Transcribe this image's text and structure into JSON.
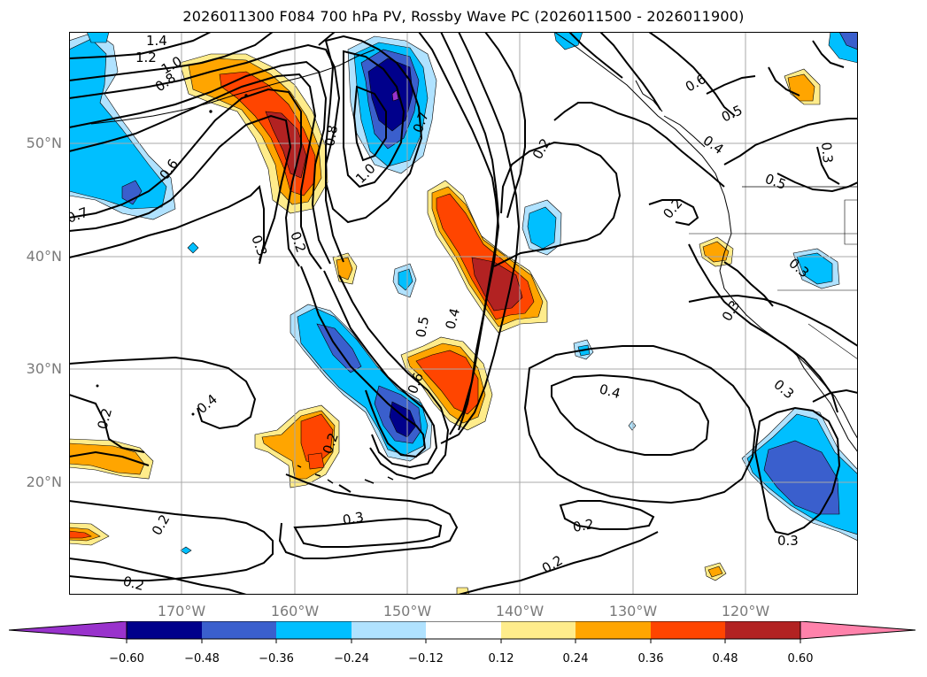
{
  "title": "2026011300 F084 700 hPa PV, Rossby Wave PC (2026011500 - 2026011900)",
  "lat_labels": [
    "50°N",
    "40°N",
    "30°N",
    "20°N"
  ],
  "lon_labels": [
    "170°W",
    "160°W",
    "150°W",
    "140°W",
    "130°W",
    "120°W"
  ],
  "contour_labels": [
    "1.4",
    "1.2",
    "1.0",
    "0.8",
    "0.6",
    "0.7",
    "0.3",
    "0.8",
    "1.0",
    "0.7",
    "0.2",
    "0.6",
    "0.5",
    "0.4",
    "0.5",
    "0.3",
    "0.2",
    "0.3",
    "0.3",
    "0.3",
    "0.5",
    "0.4",
    "0.6",
    "0.2",
    "0.4",
    "0.2",
    "0.2",
    "0.4",
    "0.3",
    "0.2",
    "0.2",
    "0.3",
    "0.2",
    "0.2"
  ],
  "colorbar": {
    "ticks": [
      "−0.60",
      "−0.48",
      "−0.36",
      "−0.24",
      "−0.12",
      "0.12",
      "0.24",
      "0.36",
      "0.48",
      "0.60"
    ],
    "colors": [
      "#9932cc",
      "#00008b",
      "#3a5fcd",
      "#00bfff",
      "#b0e2ff",
      "#ffffff",
      "#ffec8b",
      "#ffa500",
      "#ff4500",
      "#b22222",
      "#ff82ab"
    ]
  },
  "fill_colors": {
    "neg_light": "#b0e2ff",
    "neg_mid": "#00bfff",
    "neg_strong": "#3a5fcd",
    "neg_max": "#00008b",
    "neg_ext": "#9932cc",
    "pos_light": "#ffec8b",
    "pos_mid": "#ffa500",
    "pos_strong": "#ff4500",
    "pos_max": "#b22222",
    "pos_ext": "#ff82ab"
  }
}
